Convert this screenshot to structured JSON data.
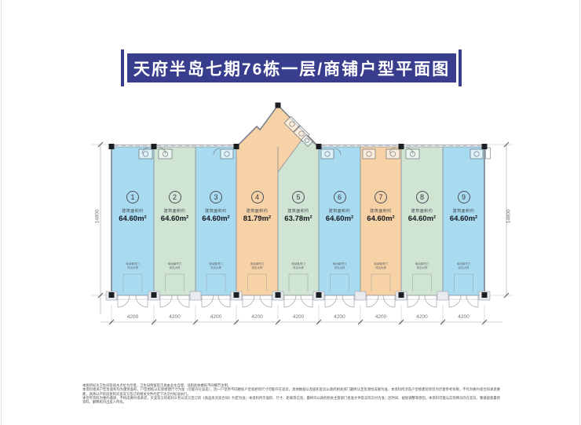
{
  "title": {
    "text": "天府半岛七期76栋一层/商铺户型平面图"
  },
  "plan": {
    "area_prefix": "建筑面积约",
    "units": [
      {
        "number": "1",
        "area": "64.60m²",
        "color": "#a9dbf0"
      },
      {
        "number": "2",
        "area": "64.60m²",
        "color": "#d0e4d4"
      },
      {
        "number": "3",
        "area": "64.60m²",
        "color": "#a9dbf0"
      },
      {
        "number": "4",
        "area": "81.79m²",
        "color": "#f7d2a6"
      },
      {
        "number": "5",
        "area": "63.78m²",
        "color": "#d0e4d4"
      },
      {
        "number": "6",
        "area": "64.60m²",
        "color": "#a9dbf0"
      },
      {
        "number": "7",
        "area": "64.60m²",
        "color": "#f7d2a6"
      },
      {
        "number": "8",
        "area": "64.60m²",
        "color": "#d0e4d4"
      },
      {
        "number": "9",
        "area": "64.60m²",
        "color": "#a9dbf0"
      }
    ],
    "unit_note": {
      "line1": "电动卷帘门",
      "line2": "详见大样"
    },
    "colors": {
      "shop_blue": "#a9dbf0",
      "shop_green": "#d0e4d4",
      "shop_orange": "#f7d2a6",
      "banner_navy": "#383d8d",
      "wall_gray": "#7c828c"
    }
  },
  "dimensions": {
    "unit_widths": [
      "4200",
      "4200",
      "4200",
      "4200",
      "4200",
      "4200",
      "4200",
      "4200",
      "4200"
    ],
    "side_left": "14800",
    "side_right": "14800"
  },
  "footer": {
    "lines": [
      "本图所标注卫生间及排水点位为示意，卫生间预留及洁具由业主自理，详和具体楼栋不同细节注明。",
      "本资料相关户型及面积均为建筑面积，户型图纸以实际修建尺寸为准（可能存在误差）；因一户型所不同楼栋户型或相邻尺寸可能存在差异，具体数据以及面积差异以政府相关部门最终认定及测绘成果为准，本资料所涉及户型修建装饰仅为示意参考效果，不作为要约或合同承诺要素，具体以产权房屋和买卖双方签订的相关文件约定下达交付标准执行。",
      "本宣传资料为要约邀请，不构成要约或承诺，买卖双方的权利义务以双方签订的《商品房买卖合同》约定为准；本资料所示面积、尺寸、距离等信息，最终均以政府相关主管部门批准文件及实际交付为准；因时间、规划调整等原因，本资料可能与实际情况存在差异，敬请留意最新资料，解释权归出卖人所有。"
    ]
  }
}
